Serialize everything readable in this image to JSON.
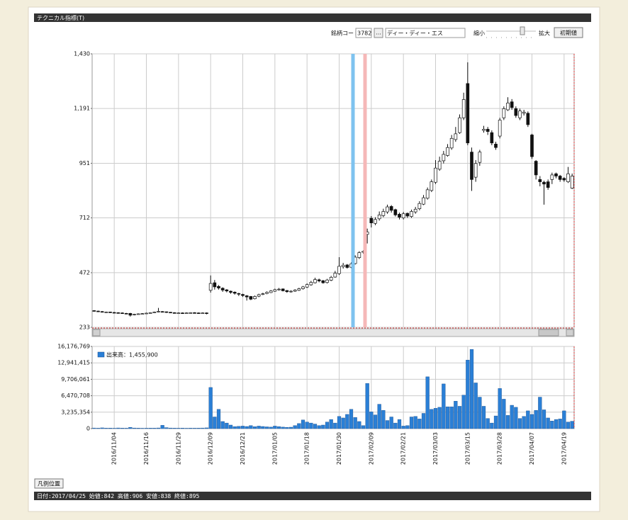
{
  "ui": {
    "window_title": "テクニカル指標(T)",
    "code_label": "銘柄コード:",
    "code": "3782",
    "code_button": "...",
    "name": "ディー・ディー・エス",
    "zoom_out": "縮小",
    "zoom_in": "拡大",
    "reset_button": "初期値",
    "legend_button": "凡例位置",
    "status": "日付:2017/04/25 始値:842 高値:906 安値:838 終値:895"
  },
  "chart_data": [
    {
      "type": "candlestick",
      "colors": {
        "up": "#ffffff",
        "down": "#111111"
      },
      "open": [
        306,
        304,
        302,
        300,
        300,
        298,
        297,
        296,
        294,
        294,
        287,
        290,
        292,
        293,
        295,
        297,
        300,
        302,
        301,
        299,
        297,
        296,
        296,
        295,
        296,
        297,
        296,
        295,
        296,
        395,
        428,
        412,
        404,
        397,
        391,
        387,
        381,
        377,
        371,
        368,
        358,
        369,
        377,
        381,
        385,
        391,
        397,
        401,
        394,
        388,
        391,
        395,
        402,
        409,
        419,
        428,
        441,
        437,
        429,
        439,
        453,
        468,
        498,
        506,
        496,
        512,
        538,
        562,
        640,
        710,
        688,
        708,
        722,
        738,
        762,
        748,
        728,
        712,
        732,
        718,
        738,
        752,
        772,
        798,
        832,
        868,
        925,
        962,
        985,
        1018,
        1055,
        1085,
        1150,
        1300,
        1000,
        890,
        955,
        1095,
        1100,
        1085,
        1035,
        1070,
        1150,
        1185,
        1220,
        1190,
        1150,
        1170,
        1170,
        1075,
        960,
        880,
        868,
        870,
        880,
        905,
        895,
        885,
        870,
        842
      ],
      "high": [
        308,
        306,
        304,
        302,
        301,
        300,
        299,
        298,
        296,
        296,
        292,
        294,
        295,
        297,
        299,
        302,
        318,
        304,
        302,
        300,
        299,
        298,
        298,
        298,
        299,
        299,
        298,
        298,
        298,
        460,
        440,
        418,
        408,
        400,
        394,
        390,
        384,
        380,
        374,
        370,
        372,
        380,
        384,
        390,
        396,
        402,
        405,
        403,
        396,
        395,
        400,
        406,
        414,
        425,
        436,
        450,
        446,
        440,
        445,
        458,
        480,
        540,
        515,
        510,
        518,
        548,
        566,
        570,
        665,
        720,
        715,
        740,
        752,
        770,
        768,
        752,
        735,
        738,
        735,
        748,
        760,
        785,
        812,
        845,
        880,
        965,
        980,
        1005,
        1035,
        1075,
        1110,
        1165,
        1260,
        1393,
        1020,
        965,
        1010,
        1115,
        1110,
        1095,
        1045,
        1150,
        1200,
        1240,
        1232,
        1200,
        1190,
        1185,
        1178,
        1080,
        965,
        895,
        875,
        880,
        910,
        910,
        900,
        890,
        935,
        906
      ],
      "low": [
        303,
        301,
        299,
        298,
        297,
        295,
        294,
        293,
        291,
        280,
        285,
        289,
        291,
        292,
        294,
        296,
        298,
        298,
        296,
        295,
        294,
        294,
        293,
        294,
        295,
        294,
        293,
        294,
        290,
        385,
        398,
        398,
        388,
        386,
        380,
        376,
        370,
        366,
        350,
        352,
        355,
        365,
        374,
        378,
        383,
        388,
        394,
        390,
        384,
        385,
        388,
        392,
        398,
        405,
        415,
        425,
        430,
        424,
        425,
        435,
        450,
        462,
        490,
        490,
        492,
        508,
        532,
        555,
        600,
        670,
        680,
        700,
        715,
        730,
        735,
        718,
        705,
        705,
        712,
        712,
        730,
        745,
        768,
        792,
        825,
        860,
        918,
        950,
        980,
        1010,
        1045,
        1080,
        1140,
        1030,
        830,
        870,
        940,
        1085,
        1075,
        1030,
        1010,
        1060,
        1140,
        1180,
        1185,
        1150,
        1140,
        1160,
        1110,
        970,
        880,
        850,
        770,
        835,
        860,
        885,
        870,
        870,
        865,
        838
      ],
      "close": [
        305,
        303,
        301,
        300,
        299,
        297,
        296,
        295,
        293,
        286,
        290,
        292,
        293,
        295,
        297,
        300,
        303,
        300,
        298,
        297,
        296,
        296,
        295,
        296,
        297,
        296,
        295,
        296,
        294,
        425,
        410,
        405,
        396,
        392,
        386,
        382,
        378,
        372,
        366,
        356,
        368,
        376,
        380,
        386,
        392,
        398,
        400,
        393,
        389,
        391,
        396,
        402,
        410,
        420,
        430,
        442,
        436,
        428,
        440,
        452,
        470,
        500,
        505,
        495,
        510,
        540,
        560,
        565,
        650,
        690,
        705,
        725,
        740,
        760,
        745,
        725,
        715,
        730,
        720,
        740,
        750,
        775,
        800,
        835,
        870,
        930,
        960,
        990,
        1020,
        1060,
        1080,
        1150,
        1230,
        1040,
        880,
        950,
        1000,
        1100,
        1090,
        1040,
        1020,
        1140,
        1190,
        1215,
        1195,
        1160,
        1180,
        1175,
        1120,
        980,
        900,
        870,
        860,
        845,
        900,
        895,
        880,
        878,
        905,
        895
      ],
      "ylim": [
        233,
        1430
      ],
      "yticks": [
        233,
        472,
        712,
        951,
        {
          "value": 1191,
          "label": "1,191"
        },
        {
          "value": 1430,
          "label": "1,430"
        }
      ],
      "grid": true
    },
    {
      "type": "bar",
      "categories": [
        null,
        null,
        null,
        null,
        null,
        "2016/11/04",
        null,
        null,
        null,
        null,
        null,
        null,
        null,
        "2016/11/16",
        null,
        null,
        null,
        null,
        null,
        null,
        null,
        "2016/11/29",
        null,
        null,
        null,
        null,
        null,
        null,
        null,
        "2016/12/09",
        null,
        null,
        null,
        null,
        null,
        null,
        null,
        "2016/12/21",
        null,
        null,
        null,
        null,
        null,
        null,
        null,
        "2017/01/05",
        null,
        null,
        null,
        null,
        null,
        null,
        null,
        "2017/01/18",
        null,
        null,
        null,
        null,
        null,
        null,
        null,
        "2017/01/30",
        null,
        null,
        null,
        null,
        null,
        null,
        null,
        "2017/02/09",
        null,
        null,
        null,
        null,
        null,
        null,
        null,
        "2017/02/21",
        null,
        null,
        null,
        null,
        null,
        null,
        null,
        "2017/03/03",
        null,
        null,
        null,
        null,
        null,
        null,
        null,
        "2017/03/15",
        null,
        null,
        null,
        null,
        null,
        null,
        null,
        "2017/03/28",
        null,
        null,
        null,
        null,
        null,
        null,
        null,
        "2017/04/07",
        null,
        null,
        null,
        null,
        null,
        null,
        null,
        "2017/04/19",
        null,
        null
      ],
      "series": [
        {
          "name": "出来高：1,455,900",
          "color": "#2a7fd6",
          "values": [
            120000,
            90000,
            150000,
            100000,
            110000,
            80000,
            130000,
            100000,
            90000,
            250000,
            120000,
            100000,
            80000,
            90000,
            110000,
            100000,
            130000,
            650000,
            200000,
            120000,
            100000,
            90000,
            110000,
            80000,
            100000,
            90000,
            100000,
            120000,
            150000,
            8100000,
            2300000,
            3800000,
            1400000,
            1100000,
            700000,
            400000,
            450000,
            500000,
            420000,
            600000,
            380000,
            500000,
            420000,
            350000,
            300000,
            500000,
            400000,
            300000,
            250000,
            280000,
            600000,
            1000000,
            1700000,
            1300000,
            1100000,
            900000,
            600000,
            700000,
            1300000,
            1800000,
            1100000,
            2400000,
            2100000,
            2800000,
            3800000,
            2200000,
            1400000,
            600000,
            8900000,
            3300000,
            2700000,
            4800000,
            3600000,
            1600000,
            2300000,
            1100000,
            1800000,
            500000,
            600000,
            2300000,
            2400000,
            1900000,
            3000000,
            10200000,
            3800000,
            4000000,
            4200000,
            8800000,
            4300000,
            4300000,
            5400000,
            4400000,
            6600000,
            13500000,
            15600000,
            9000000,
            6200000,
            4400000,
            2000000,
            1100000,
            2500000,
            7900000,
            5800000,
            2600000,
            4600000,
            4200000,
            2000000,
            2400000,
            3500000,
            2800000,
            3600000,
            6200000,
            3700000,
            2100000,
            1500000,
            1800000,
            1900000,
            3500000,
            1300000,
            1455900
          ]
        }
      ],
      "ylim": [
        0,
        16176769
      ],
      "yticks": [
        0,
        {
          "value": 3235354,
          "label": "3,235,354"
        },
        {
          "value": 6470708,
          "label": "6,470,708"
        },
        {
          "value": 9706061,
          "label": "9,706,061"
        },
        {
          "value": 12941415,
          "label": "12,941,415"
        },
        {
          "value": 16176769,
          "label": "16,176,769"
        }
      ],
      "grid": true
    }
  ]
}
